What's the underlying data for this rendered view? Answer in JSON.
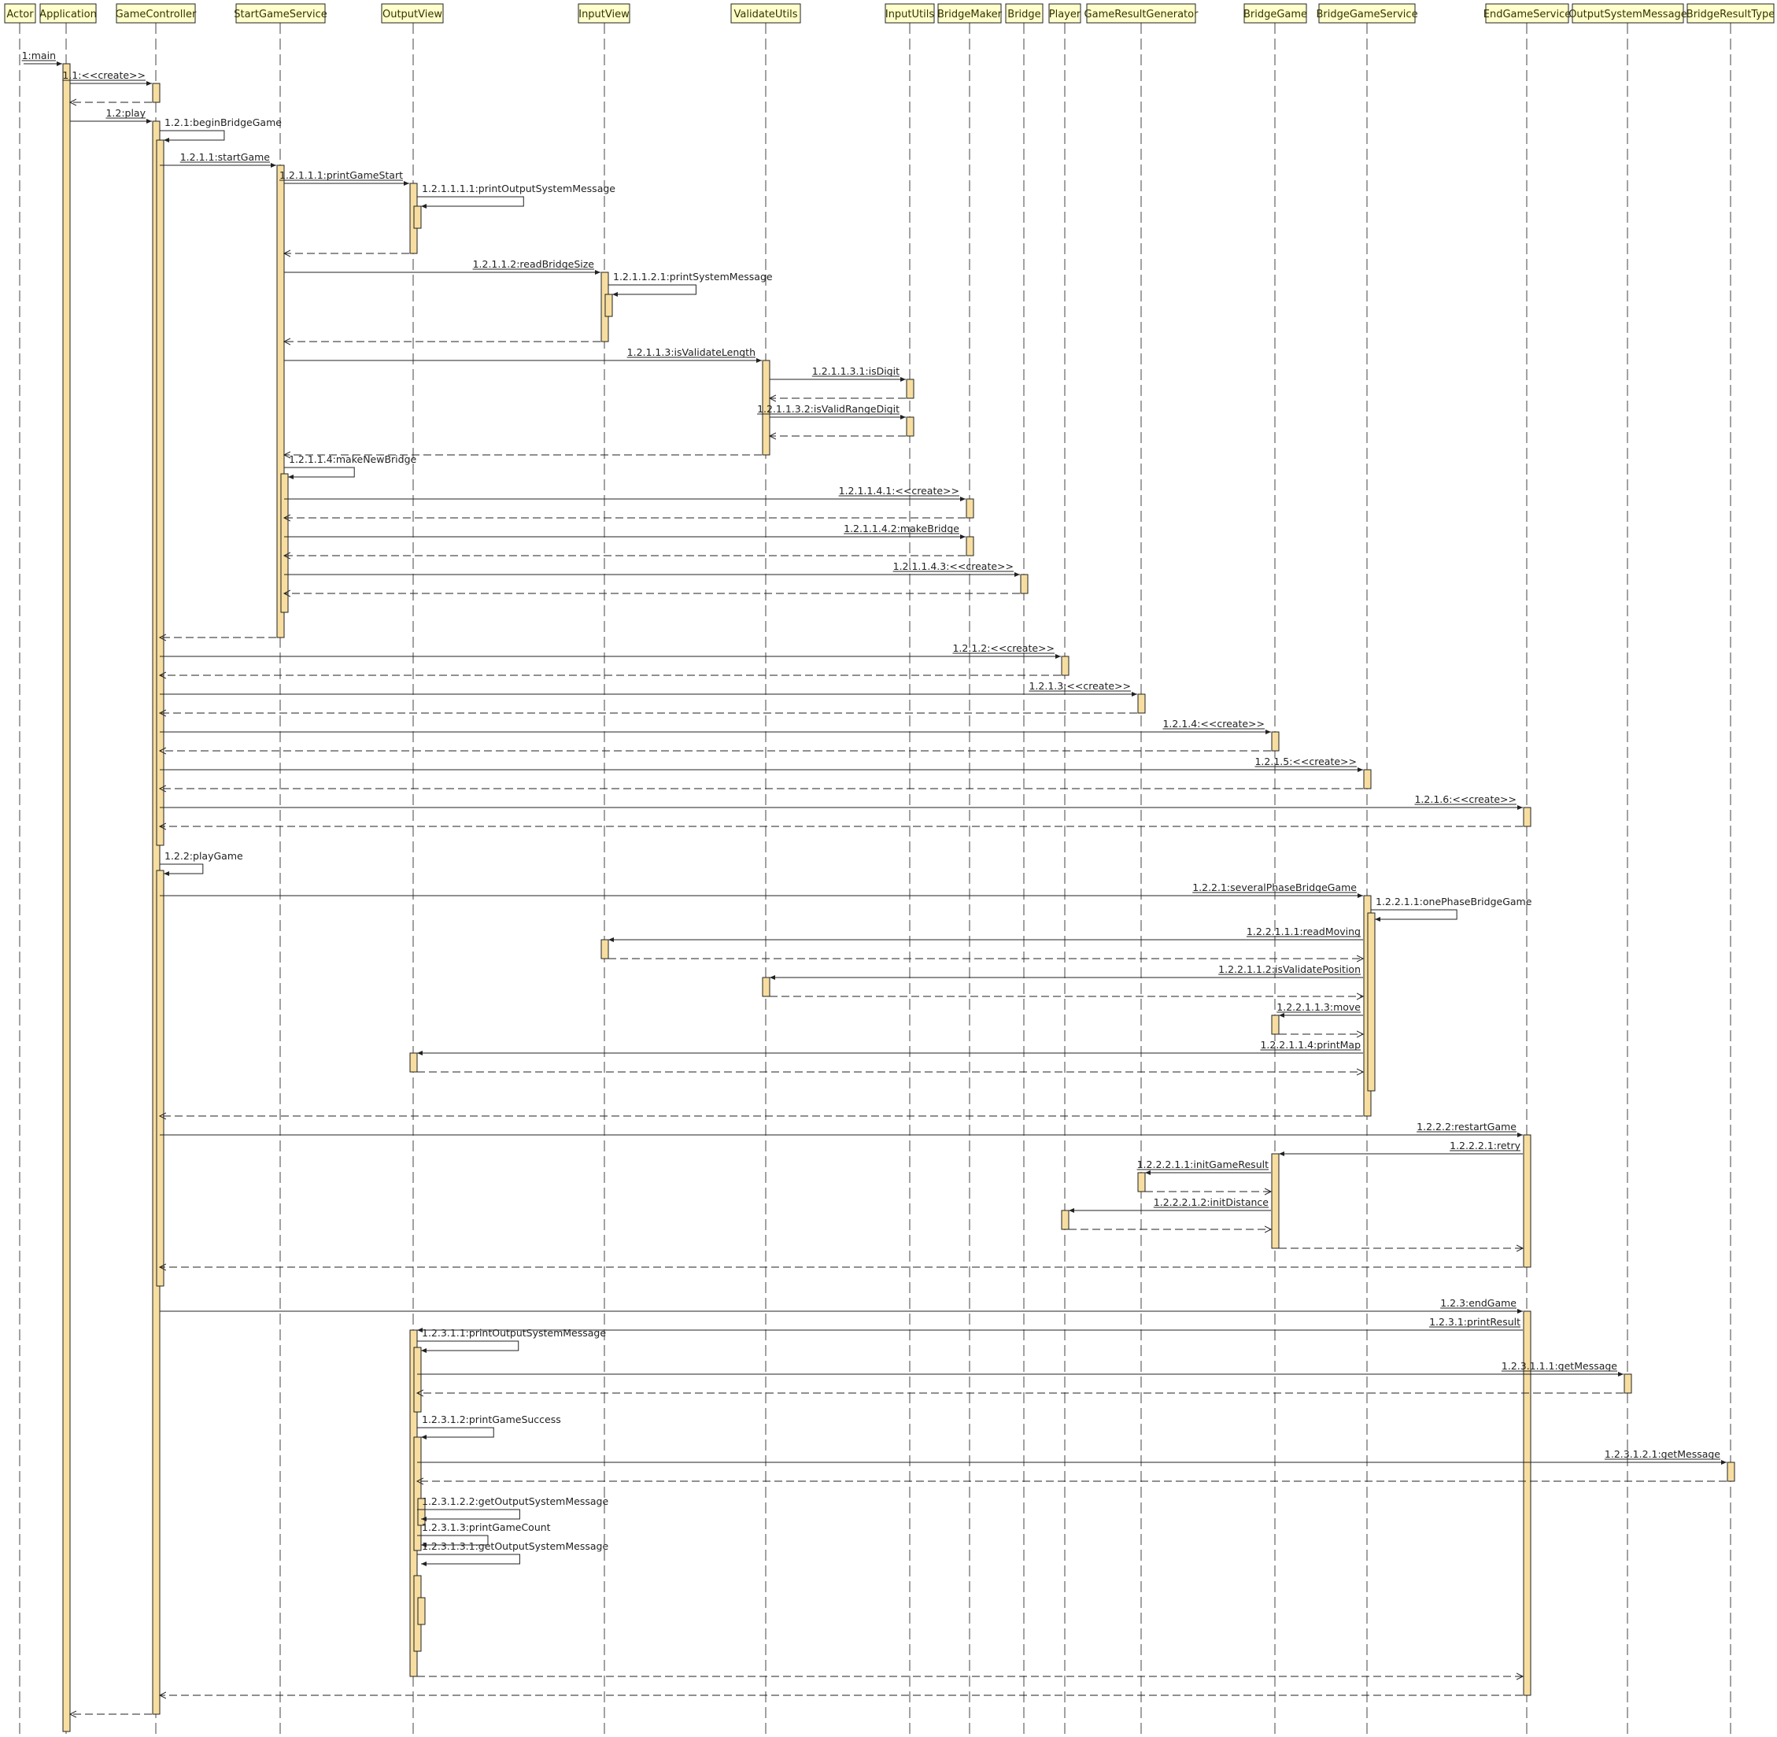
{
  "lifelines": [
    {
      "id": "actor",
      "label": "Actor"
    },
    {
      "id": "app",
      "label": "Application"
    },
    {
      "id": "gc",
      "label": "GameController"
    },
    {
      "id": "sgs",
      "label": "StartGameService"
    },
    {
      "id": "ov",
      "label": "OutputView"
    },
    {
      "id": "iv",
      "label": "InputView"
    },
    {
      "id": "vu",
      "label": "ValidateUtils"
    },
    {
      "id": "iu",
      "label": "InputUtils"
    },
    {
      "id": "bm",
      "label": "BridgeMaker"
    },
    {
      "id": "br",
      "label": "Bridge"
    },
    {
      "id": "pl",
      "label": "Player"
    },
    {
      "id": "grg",
      "label": "GameResultGenerator"
    },
    {
      "id": "bg",
      "label": "BridgeGame"
    },
    {
      "id": "bgs",
      "label": "BridgeGameService"
    },
    {
      "id": "egs",
      "label": "EndGameService"
    },
    {
      "id": "osm",
      "label": "OutputSystemMessage"
    },
    {
      "id": "brt",
      "label": "BridgeResultType"
    }
  ],
  "messages": [
    {
      "from": "actor",
      "to": "app",
      "label": "1:main",
      "type": "call"
    },
    {
      "from": "app",
      "to": "gc",
      "label": "1.1:<<create>>",
      "type": "call"
    },
    {
      "from": "gc",
      "to": "app",
      "label": "",
      "type": "return"
    },
    {
      "from": "app",
      "to": "gc",
      "label": "1.2:play",
      "type": "call"
    },
    {
      "from": "gc",
      "to": "gc",
      "label": "1.2.1:beginBridgeGame",
      "type": "self"
    },
    {
      "from": "gc",
      "to": "sgs",
      "label": "1.2.1.1:startGame",
      "type": "call"
    },
    {
      "from": "sgs",
      "to": "ov",
      "label": "1.2.1.1.1:printGameStart",
      "type": "call"
    },
    {
      "from": "ov",
      "to": "ov",
      "label": "1.2.1.1.1.1:printOutputSystemMessage",
      "type": "self"
    },
    {
      "from": "ov",
      "to": "sgs",
      "label": "",
      "type": "return"
    },
    {
      "from": "sgs",
      "to": "iv",
      "label": "1.2.1.1.2:readBridgeSize",
      "type": "call"
    },
    {
      "from": "iv",
      "to": "iv",
      "label": "1.2.1.1.2.1:printSystemMessage",
      "type": "self"
    },
    {
      "from": "iv",
      "to": "sgs",
      "label": "",
      "type": "return"
    },
    {
      "from": "sgs",
      "to": "vu",
      "label": "1.2.1.1.3:isValidateLength",
      "type": "call"
    },
    {
      "from": "vu",
      "to": "iu",
      "label": "1.2.1.1.3.1:isDigit",
      "type": "call"
    },
    {
      "from": "iu",
      "to": "vu",
      "label": "",
      "type": "return"
    },
    {
      "from": "vu",
      "to": "iu",
      "label": "1.2.1.1.3.2:isValidRangeDigit",
      "type": "call"
    },
    {
      "from": "iu",
      "to": "vu",
      "label": "",
      "type": "return"
    },
    {
      "from": "vu",
      "to": "sgs",
      "label": "",
      "type": "return"
    },
    {
      "from": "sgs",
      "to": "sgs",
      "label": "1.2.1.1.4:makeNewBridge",
      "type": "self"
    },
    {
      "from": "sgs",
      "to": "bm",
      "label": "1.2.1.1.4.1:<<create>>",
      "type": "call"
    },
    {
      "from": "bm",
      "to": "sgs",
      "label": "",
      "type": "return"
    },
    {
      "from": "sgs",
      "to": "bm",
      "label": "1.2.1.1.4.2:makeBridge",
      "type": "call"
    },
    {
      "from": "bm",
      "to": "sgs",
      "label": "",
      "type": "return"
    },
    {
      "from": "sgs",
      "to": "br",
      "label": "1.2.1.1.4.3:<<create>>",
      "type": "call"
    },
    {
      "from": "br",
      "to": "sgs",
      "label": "",
      "type": "return"
    },
    {
      "from": "sgs",
      "to": "gc",
      "label": "",
      "type": "return"
    },
    {
      "from": "gc",
      "to": "pl",
      "label": "1.2.1.2:<<create>>",
      "type": "call"
    },
    {
      "from": "pl",
      "to": "gc",
      "label": "",
      "type": "return"
    },
    {
      "from": "gc",
      "to": "grg",
      "label": "1.2.1.3:<<create>>",
      "type": "call"
    },
    {
      "from": "grg",
      "to": "gc",
      "label": "",
      "type": "return"
    },
    {
      "from": "gc",
      "to": "bg",
      "label": "1.2.1.4:<<create>>",
      "type": "call"
    },
    {
      "from": "bg",
      "to": "gc",
      "label": "",
      "type": "return"
    },
    {
      "from": "gc",
      "to": "bgs",
      "label": "1.2.1.5:<<create>>",
      "type": "call"
    },
    {
      "from": "bgs",
      "to": "gc",
      "label": "",
      "type": "return"
    },
    {
      "from": "gc",
      "to": "egs",
      "label": "1.2.1.6:<<create>>",
      "type": "call"
    },
    {
      "from": "egs",
      "to": "gc",
      "label": "",
      "type": "return"
    },
    {
      "from": "gc",
      "to": "gc",
      "label": "1.2.2:playGame",
      "type": "self"
    },
    {
      "from": "gc",
      "to": "bgs",
      "label": "1.2.2.1:severalPhaseBridgeGame",
      "type": "call"
    },
    {
      "from": "bgs",
      "to": "bgs",
      "label": "1.2.2.1.1:onePhaseBridgeGame",
      "type": "self"
    },
    {
      "from": "bgs",
      "to": "iv",
      "label": "1.2.2.1.1.1:readMoving",
      "type": "call"
    },
    {
      "from": "iv",
      "to": "bgs",
      "label": "",
      "type": "return"
    },
    {
      "from": "bgs",
      "to": "vu",
      "label": "1.2.2.1.1.2:isValidatePosition",
      "type": "call"
    },
    {
      "from": "vu",
      "to": "bgs",
      "label": "",
      "type": "return"
    },
    {
      "from": "bgs",
      "to": "bg",
      "label": "1.2.2.1.1.3:move",
      "type": "call"
    },
    {
      "from": "bg",
      "to": "bgs",
      "label": "",
      "type": "return"
    },
    {
      "from": "bgs",
      "to": "ov",
      "label": "1.2.2.1.1.4:printMap",
      "type": "call"
    },
    {
      "from": "ov",
      "to": "bgs",
      "label": "",
      "type": "return"
    },
    {
      "from": "bgs",
      "to": "gc",
      "label": "",
      "type": "return"
    },
    {
      "from": "gc",
      "to": "egs",
      "label": "1.2.2.2:restartGame",
      "type": "call"
    },
    {
      "from": "egs",
      "to": "bg",
      "label": "1.2.2.2.1:retry",
      "type": "call"
    },
    {
      "from": "bg",
      "to": "grg",
      "label": "1.2.2.2.1.1:initGameResult",
      "type": "call"
    },
    {
      "from": "grg",
      "to": "bg",
      "label": "",
      "type": "return"
    },
    {
      "from": "bg",
      "to": "pl",
      "label": "1.2.2.2.1.2:initDistance",
      "type": "call"
    },
    {
      "from": "pl",
      "to": "bg",
      "label": "",
      "type": "return"
    },
    {
      "from": "bg",
      "to": "egs",
      "label": "",
      "type": "return"
    },
    {
      "from": "egs",
      "to": "gc",
      "label": "",
      "type": "return"
    },
    {
      "from": "gc",
      "to": "egs",
      "label": "1.2.3:endGame",
      "type": "call"
    },
    {
      "from": "egs",
      "to": "ov",
      "label": "1.2.3.1:printResult",
      "type": "call"
    },
    {
      "from": "ov",
      "to": "ov",
      "label": "1.2.3.1.1:printOutputSystemMessage",
      "type": "self"
    },
    {
      "from": "ov",
      "to": "osm",
      "label": "1.2.3.1.1.1:getMessage",
      "type": "call"
    },
    {
      "from": "osm",
      "to": "ov",
      "label": "",
      "type": "return"
    },
    {
      "from": "ov",
      "to": "ov",
      "label": "1.2.3.1.2:printGameSuccess",
      "type": "self"
    },
    {
      "from": "ov",
      "to": "brt",
      "label": "1.2.3.1.2.1:getMessage",
      "type": "call"
    },
    {
      "from": "brt",
      "to": "ov",
      "label": "",
      "type": "return"
    },
    {
      "from": "ov",
      "to": "ov",
      "label": "1.2.3.1.2.2:getOutputSystemMessage",
      "type": "self"
    },
    {
      "from": "ov",
      "to": "ov",
      "label": "1.2.3.1.3:printGameCount",
      "type": "self"
    },
    {
      "from": "ov",
      "to": "ov",
      "label": "1.2.3.1.3.1:getOutputSystemMessage",
      "type": "self"
    },
    {
      "from": "ov",
      "to": "egs",
      "label": "",
      "type": "return"
    },
    {
      "from": "egs",
      "to": "gc",
      "label": "",
      "type": "return"
    },
    {
      "from": "gc",
      "to": "app",
      "label": "",
      "type": "return"
    }
  ]
}
